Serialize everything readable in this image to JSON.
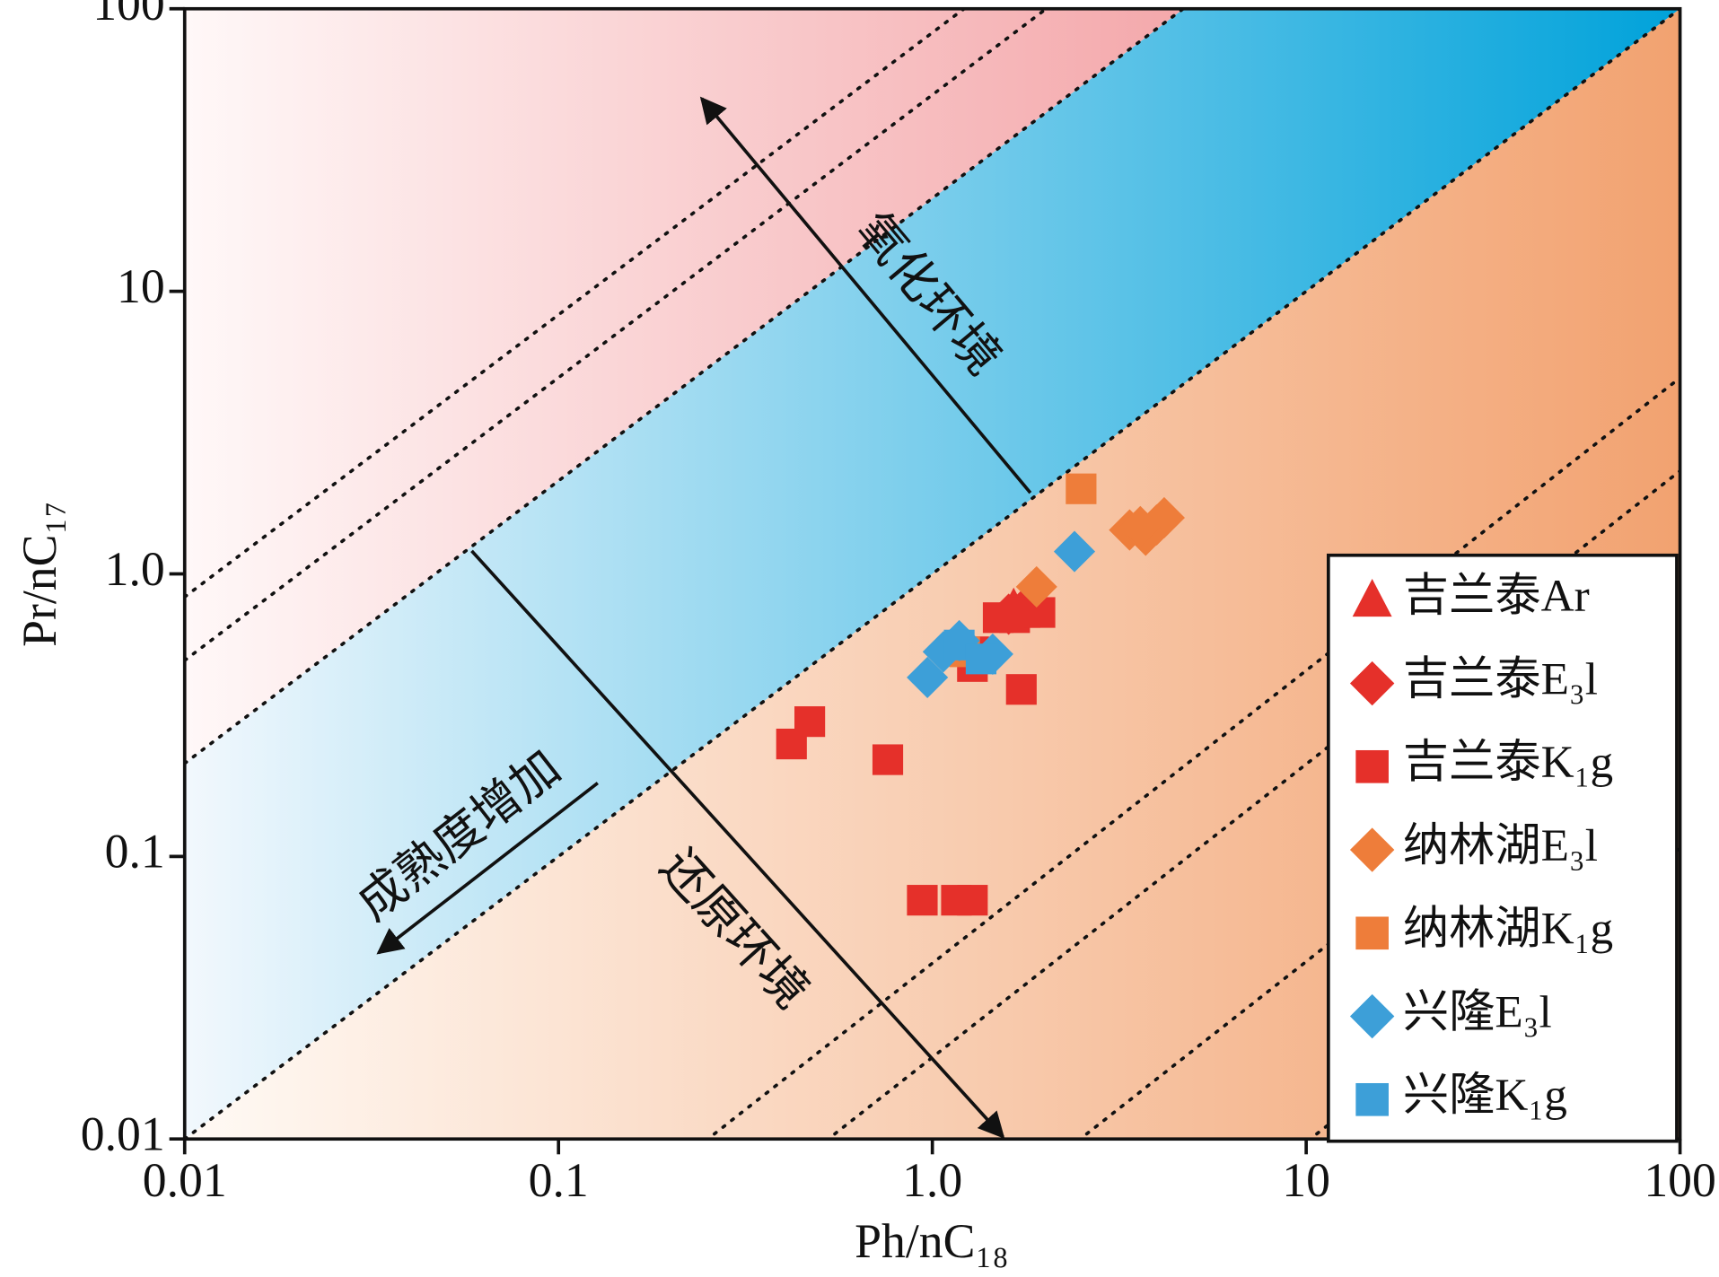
{
  "chart_data": {
    "type": "scatter",
    "x_label": "Ph/nC₁₈",
    "y_label": "Pr/nC₁₇",
    "xscale": "log",
    "yscale": "log",
    "xlim": [
      0.01,
      100
    ],
    "ylim": [
      0.01,
      100
    ],
    "xticks": [
      0.01,
      0.1,
      {
        "value": 1,
        "label": "1.0"
      },
      10,
      100
    ],
    "yticks": [
      0.01,
      0.1,
      {
        "value": 1,
        "label": "1.0"
      },
      10,
      100
    ],
    "annotations": [
      "氧化环境",
      "还原环境",
      "成熟度增加"
    ],
    "legend": "lower right",
    "series": [
      {
        "name": "吉兰泰Ar",
        "color": "#e5302a",
        "marker": "triangle",
        "x": [
          1.65
        ],
        "values": [
          0.76
        ]
      },
      {
        "name": "吉兰泰E₃l",
        "color": "#e5302a",
        "marker": "diamond",
        "x": [
          1.6,
          1.75
        ],
        "values": [
          0.72,
          0.75
        ]
      },
      {
        "name": "吉兰泰K₁g",
        "color": "#e5302a",
        "marker": "square",
        "x": [
          0.42,
          0.47,
          0.76,
          0.94,
          1.16,
          1.28,
          1.28,
          1.29,
          1.73,
          1.5,
          1.66,
          1.94,
          1.77
        ],
        "values": [
          0.25,
          0.3,
          0.22,
          0.07,
          0.07,
          0.07,
          0.47,
          0.53,
          0.39,
          0.7,
          0.7,
          0.73,
          0.73
        ]
      },
      {
        "name": "纳林湖E₃l",
        "color": "#ee7d3a",
        "marker": "diamond",
        "x": [
          1.9,
          3.37,
          3.72,
          3.98,
          4.17,
          3.6
        ],
        "values": [
          0.9,
          1.43,
          1.37,
          1.49,
          1.58,
          1.47
        ]
      },
      {
        "name": "纳林湖K₁g",
        "color": "#ee7d3a",
        "marker": "square",
        "x": [
          2.5,
          1.22
        ],
        "values": [
          2.0,
          0.53
        ]
      },
      {
        "name": "兴隆E₃l",
        "color": "#3d9fd8",
        "marker": "diamond",
        "x": [
          2.4,
          0.97,
          1.07,
          1.18,
          1.45
        ],
        "values": [
          1.2,
          0.43,
          0.53,
          0.58,
          0.52
        ]
      },
      {
        "name": "兴隆K₁g",
        "color": "#3d9fd8",
        "marker": "square",
        "x": [
          1.18,
          1.35
        ],
        "values": [
          0.56,
          0.5
        ]
      }
    ]
  }
}
